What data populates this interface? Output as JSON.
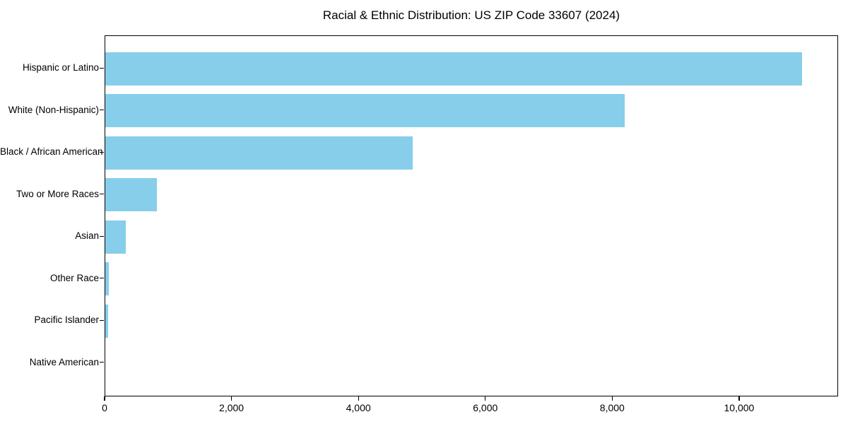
{
  "chart_data": {
    "type": "bar",
    "orientation": "horizontal",
    "title": "Racial & Ethnic Distribution: US ZIP Code 33607 (2024)",
    "categories": [
      "Hispanic or Latino",
      "White (Non-Hispanic)",
      "Black / African American",
      "Two or More Races",
      "Asian",
      "Other Race",
      "Pacific Islander",
      "Native American"
    ],
    "values": [
      11000,
      8200,
      4850,
      820,
      320,
      60,
      45,
      0
    ],
    "xlabel": "",
    "ylabel": "",
    "xlim": [
      0,
      11560
    ],
    "xticks": [
      0,
      2000,
      4000,
      6000,
      8000,
      10000
    ],
    "xtick_labels": [
      "0",
      "2,000",
      "4,000",
      "6,000",
      "8,000",
      "10,000"
    ],
    "grid": false,
    "legend": null,
    "colors": {
      "bar_fill": "#87CEEB",
      "spine": "#000000",
      "text": "#000000",
      "background": "#FFFFFF"
    }
  }
}
